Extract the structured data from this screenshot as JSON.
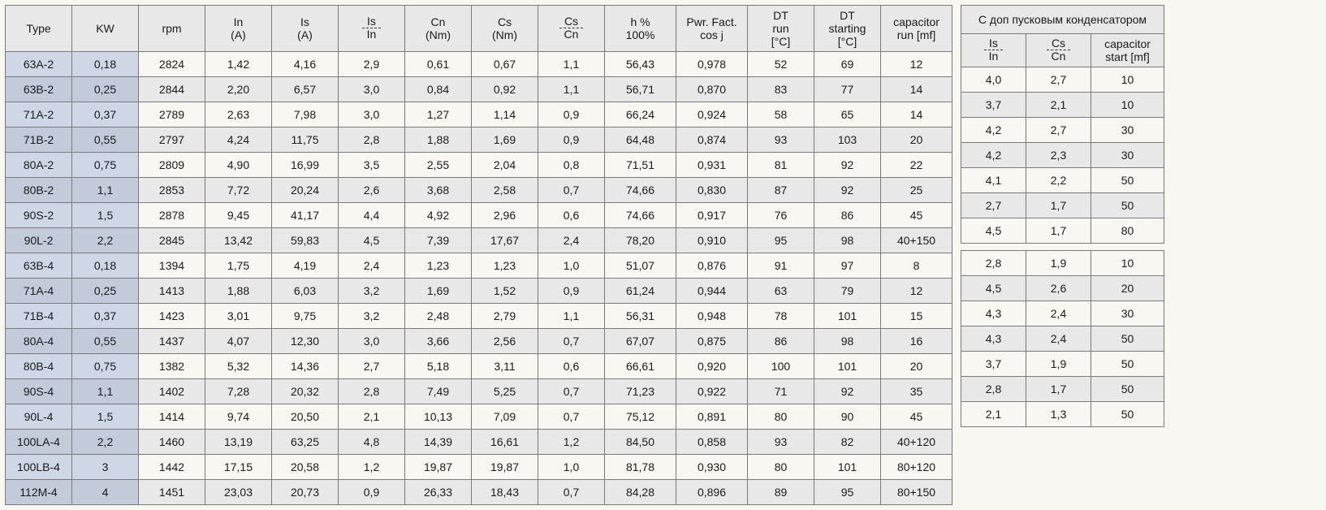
{
  "main": {
    "headers": {
      "type": "Type",
      "kw": "KW",
      "rpm": "rpm",
      "in": "In\n(A)",
      "is": "Is\n(A)",
      "is_in_top": "Is",
      "is_in_bot": "In",
      "cn": "Cn\n(Nm)",
      "cs": "Cs\n(Nm)",
      "cs_cn_top": "Cs",
      "cs_cn_bot": "Cn",
      "h": "h %\n100%",
      "pf": "Pwr. Fact.\ncos j",
      "dtrun": "DT\nrun\n[°C]",
      "dtstart": "DT\nstarting\n[°C]",
      "caprun": "capacitor\nrun [mf]"
    },
    "rows": [
      {
        "type": "63A-2",
        "kw": "0,18",
        "rpm": "2824",
        "in": "1,42",
        "is": "4,16",
        "isin": "2,9",
        "cn": "0,61",
        "cs": "0,67",
        "cscn": "1,1",
        "h": "56,43",
        "pf": "0,978",
        "dtrun": "52",
        "dtstart": "69",
        "cap": "12"
      },
      {
        "type": "63B-2",
        "kw": "0,25",
        "rpm": "2844",
        "in": "2,20",
        "is": "6,57",
        "isin": "3,0",
        "cn": "0,84",
        "cs": "0,92",
        "cscn": "1,1",
        "h": "56,71",
        "pf": "0,870",
        "dtrun": "83",
        "dtstart": "77",
        "cap": "14"
      },
      {
        "type": "71A-2",
        "kw": "0,37",
        "rpm": "2789",
        "in": "2,63",
        "is": "7,98",
        "isin": "3,0",
        "cn": "1,27",
        "cs": "1,14",
        "cscn": "0,9",
        "h": "66,24",
        "pf": "0,924",
        "dtrun": "58",
        "dtstart": "65",
        "cap": "14"
      },
      {
        "type": "71B-2",
        "kw": "0,55",
        "rpm": "2797",
        "in": "4,24",
        "is": "11,75",
        "isin": "2,8",
        "cn": "1,88",
        "cs": "1,69",
        "cscn": "0,9",
        "h": "64,48",
        "pf": "0,874",
        "dtrun": "93",
        "dtstart": "103",
        "cap": "20"
      },
      {
        "type": "80A-2",
        "kw": "0,75",
        "rpm": "2809",
        "in": "4,90",
        "is": "16,99",
        "isin": "3,5",
        "cn": "2,55",
        "cs": "2,04",
        "cscn": "0,8",
        "h": "71,51",
        "pf": "0,931",
        "dtrun": "81",
        "dtstart": "92",
        "cap": "22"
      },
      {
        "type": "80B-2",
        "kw": "1,1",
        "rpm": "2853",
        "in": "7,72",
        "is": "20,24",
        "isin": "2,6",
        "cn": "3,68",
        "cs": "2,58",
        "cscn": "0,7",
        "h": "74,66",
        "pf": "0,830",
        "dtrun": "87",
        "dtstart": "92",
        "cap": "25"
      },
      {
        "type": "90S-2",
        "kw": "1,5",
        "rpm": "2878",
        "in": "9,45",
        "is": "41,17",
        "isin": "4,4",
        "cn": "4,92",
        "cs": "2,96",
        "cscn": "0,6",
        "h": "74,66",
        "pf": "0,917",
        "dtrun": "76",
        "dtstart": "86",
        "cap": "45"
      },
      {
        "type": "90L-2",
        "kw": "2,2",
        "rpm": "2845",
        "in": "13,42",
        "is": "59,83",
        "isin": "4,5",
        "cn": "7,39",
        "cs": "17,67",
        "cscn": "2,4",
        "h": "78,20",
        "pf": "0,910",
        "dtrun": "95",
        "dtstart": "98",
        "cap": "40+150"
      },
      {
        "type": "63B-4",
        "kw": "0,18",
        "rpm": "1394",
        "in": "1,75",
        "is": "4,19",
        "isin": "2,4",
        "cn": "1,23",
        "cs": "1,23",
        "cscn": "1,0",
        "h": "51,07",
        "pf": "0,876",
        "dtrun": "91",
        "dtstart": "97",
        "cap": "8"
      },
      {
        "type": "71A-4",
        "kw": "0,25",
        "rpm": "1413",
        "in": "1,88",
        "is": "6,03",
        "isin": "3,2",
        "cn": "1,69",
        "cs": "1,52",
        "cscn": "0,9",
        "h": "61,24",
        "pf": "0,944",
        "dtrun": "63",
        "dtstart": "79",
        "cap": "12"
      },
      {
        "type": "71B-4",
        "kw": "0,37",
        "rpm": "1423",
        "in": "3,01",
        "is": "9,75",
        "isin": "3,2",
        "cn": "2,48",
        "cs": "2,79",
        "cscn": "1,1",
        "h": "56,31",
        "pf": "0,948",
        "dtrun": "78",
        "dtstart": "101",
        "cap": "15"
      },
      {
        "type": "80A-4",
        "kw": "0,55",
        "rpm": "1437",
        "in": "4,07",
        "is": "12,30",
        "isin": "3,0",
        "cn": "3,66",
        "cs": "2,56",
        "cscn": "0,7",
        "h": "67,07",
        "pf": "0,875",
        "dtrun": "86",
        "dtstart": "98",
        "cap": "16"
      },
      {
        "type": "80B-4",
        "kw": "0,75",
        "rpm": "1382",
        "in": "5,32",
        "is": "14,36",
        "isin": "2,7",
        "cn": "5,18",
        "cs": "3,11",
        "cscn": "0,6",
        "h": "66,61",
        "pf": "0,920",
        "dtrun": "100",
        "dtstart": "101",
        "cap": "20"
      },
      {
        "type": "90S-4",
        "kw": "1,1",
        "rpm": "1402",
        "in": "7,28",
        "is": "20,32",
        "isin": "2,8",
        "cn": "7,49",
        "cs": "5,25",
        "cscn": "0,7",
        "h": "71,23",
        "pf": "0,922",
        "dtrun": "71",
        "dtstart": "92",
        "cap": "35"
      },
      {
        "type": "90L-4",
        "kw": "1,5",
        "rpm": "1414",
        "in": "9,74",
        "is": "20,50",
        "isin": "2,1",
        "cn": "10,13",
        "cs": "7,09",
        "cscn": "0,7",
        "h": "75,12",
        "pf": "0,891",
        "dtrun": "80",
        "dtstart": "90",
        "cap": "45"
      },
      {
        "type": "100LA-4",
        "kw": "2,2",
        "rpm": "1460",
        "in": "13,19",
        "is": "63,25",
        "isin": "4,8",
        "cn": "14,39",
        "cs": "16,61",
        "cscn": "1,2",
        "h": "84,50",
        "pf": "0,858",
        "dtrun": "93",
        "dtstart": "82",
        "cap": "40+120"
      },
      {
        "type": "100LB-4",
        "kw": "3",
        "rpm": "1442",
        "in": "17,15",
        "is": "20,58",
        "isin": "1,2",
        "cn": "19,87",
        "cs": "19,87",
        "cscn": "1,0",
        "h": "81,78",
        "pf": "0,930",
        "dtrun": "80",
        "dtstart": "101",
        "cap": "80+120"
      },
      {
        "type": "112M-4",
        "kw": "4",
        "rpm": "1451",
        "in": "23,03",
        "is": "20,73",
        "isin": "0,9",
        "cn": "26,33",
        "cs": "18,43",
        "cscn": "0,7",
        "h": "84,28",
        "pf": "0,896",
        "dtrun": "89",
        "dtstart": "95",
        "cap": "80+150"
      }
    ]
  },
  "side": {
    "title": "С доп пусковым конденсатором",
    "headers": {
      "is_in_top": "Is",
      "is_in_bot": "In",
      "cs_cn_top": "Cs",
      "cs_cn_bot": "Cn",
      "capstart": "capacitor\nstart [mf]"
    },
    "group1": [
      {
        "isin": "4,0",
        "cscn": "2,7",
        "cap": "10"
      },
      {
        "isin": "3,7",
        "cscn": "2,1",
        "cap": "10"
      },
      {
        "isin": "4,2",
        "cscn": "2,7",
        "cap": "30"
      },
      {
        "isin": "4,2",
        "cscn": "2,3",
        "cap": "30"
      },
      {
        "isin": "4,1",
        "cscn": "2,2",
        "cap": "50"
      },
      {
        "isin": "2,7",
        "cscn": "1,7",
        "cap": "50"
      },
      {
        "isin": "4,5",
        "cscn": "1,7",
        "cap": "80"
      }
    ],
    "group2": [
      {
        "isin": "2,8",
        "cscn": "1,9",
        "cap": "10"
      },
      {
        "isin": "4,5",
        "cscn": "2,6",
        "cap": "20"
      },
      {
        "isin": "4,3",
        "cscn": "2,4",
        "cap": "30"
      },
      {
        "isin": "4,3",
        "cscn": "2,4",
        "cap": "50"
      },
      {
        "isin": "3,7",
        "cscn": "1,9",
        "cap": "50"
      },
      {
        "isin": "2,8",
        "cscn": "1,7",
        "cap": "50"
      },
      {
        "isin": "2,1",
        "cscn": "1,3",
        "cap": "50"
      }
    ]
  }
}
